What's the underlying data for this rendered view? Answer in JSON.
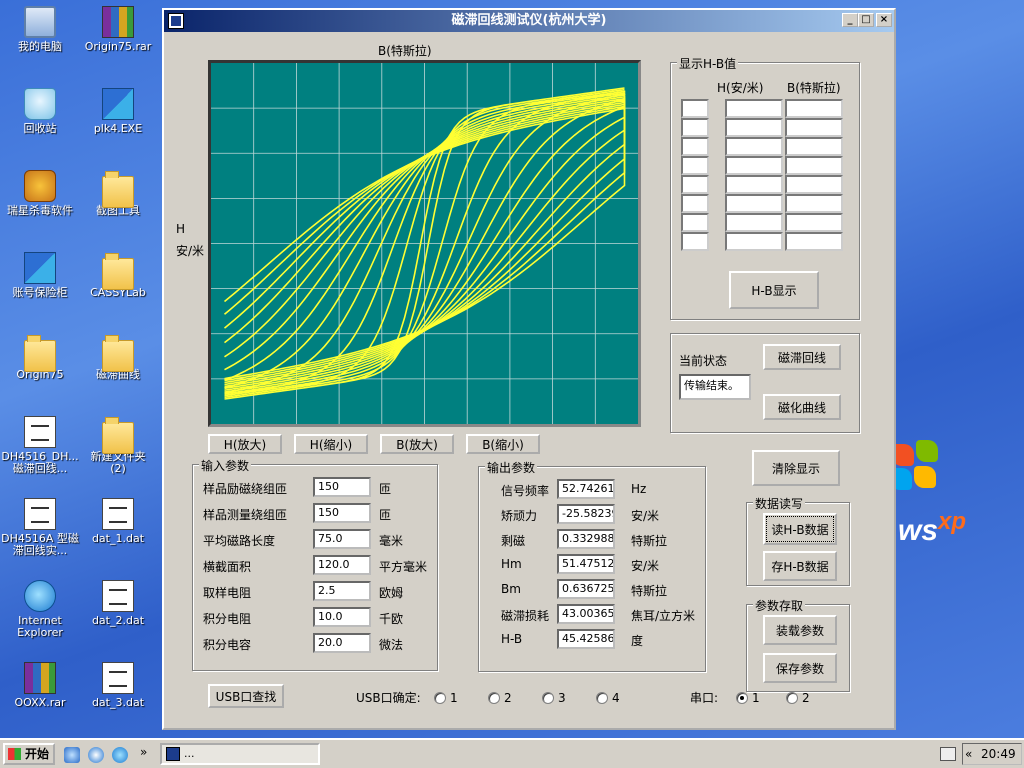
{
  "desktop": {
    "icons": [
      {
        "label": "我的电脑",
        "type": "computer"
      },
      {
        "label": "Origin75.rar",
        "type": "rar"
      },
      {
        "label": "回收站",
        "type": "recycle"
      },
      {
        "label": "plk4.EXE",
        "type": "exe"
      },
      {
        "label": "瑞星杀毒软件",
        "type": "lion"
      },
      {
        "label": "截图工具",
        "type": "folder"
      },
      {
        "label": "账号保险柜",
        "type": "exe"
      },
      {
        "label": "CASSYLab",
        "type": "folder"
      },
      {
        "label": "Origin75",
        "type": "folder"
      },
      {
        "label": "磁滞曲线",
        "type": "folder"
      },
      {
        "label": "DH4516_DH...\n磁滞回线...",
        "type": "doc"
      },
      {
        "label": "新建文件夹\n(2)",
        "type": "folder"
      },
      {
        "label": "DH4516A 型磁\n滞回线实...",
        "type": "doc"
      },
      {
        "label": "dat_1.dat",
        "type": "doc"
      },
      {
        "label": "Internet\nExplorer",
        "type": "ie"
      },
      {
        "label": "dat_2.dat",
        "type": "doc"
      },
      {
        "label": "OOXX.rar",
        "type": "rar"
      },
      {
        "label": "dat_3.dat",
        "type": "doc"
      }
    ]
  },
  "window": {
    "title": "磁滞回线测试仪(杭州大学)",
    "minimize": "_",
    "maximize": "□",
    "close": "×"
  },
  "plot": {
    "x_label": "B(特斯拉)",
    "y_label_1": "H",
    "y_label_2": "安/米",
    "line_color": "#ffff33",
    "bg_color": "#008080",
    "grid_color": "#c0d8d8",
    "zoom_buttons": [
      "H(放大)",
      "H(缩小)",
      "B(放大)",
      "B(缩小)"
    ]
  },
  "hb_panel": {
    "title": "显示H-B值",
    "col_h": "H(安/米)",
    "col_b": "B(特斯拉)",
    "button": "H-B显示"
  },
  "status_panel": {
    "label": "当前状态",
    "value": "传输结束。",
    "btn_hysteresis": "磁滞回线",
    "btn_magnetization": "磁化曲线"
  },
  "input_params": {
    "title": "输入参数",
    "rows": [
      {
        "label": "样品励磁绕组匝",
        "value": "150",
        "unit": "匝"
      },
      {
        "label": "样品测量绕组匝",
        "value": "150",
        "unit": "匝"
      },
      {
        "label": "平均磁路长度",
        "value": "75.0",
        "unit": "毫米"
      },
      {
        "label": "横截面积",
        "value": "120.0",
        "unit": "平方毫米"
      },
      {
        "label": "取样电阻",
        "value": "2.5",
        "unit": "欧姆"
      },
      {
        "label": "积分电阻",
        "value": "10.0",
        "unit": "千欧"
      },
      {
        "label": "积分电容",
        "value": "20.0",
        "unit": "微法"
      }
    ]
  },
  "output_params": {
    "title": "输出参数",
    "rows": [
      {
        "label": "信号频率",
        "value": "52.742616",
        "unit": "Hz"
      },
      {
        "label": "矫顽力",
        "value": "-25.58239",
        "unit": "安/米"
      },
      {
        "label": "剩磁",
        "value": "0.332988",
        "unit": "特斯拉"
      },
      {
        "label": "Hm",
        "value": "51.475128",
        "unit": "安/米"
      },
      {
        "label": "Bm",
        "value": "0.636725",
        "unit": "特斯拉"
      },
      {
        "label": "磁滞损耗",
        "value": "43.003651",
        "unit": "焦耳/立方米"
      },
      {
        "label": "H-B",
        "value": "45.425868",
        "unit": "度"
      }
    ]
  },
  "right_buttons": {
    "clear": "清除显示",
    "data_group": "数据读写",
    "read_hb": "读H-B数据",
    "save_hb": "存H-B数据",
    "param_group": "参数存取",
    "load_params": "装载参数",
    "save_params": "保存参数"
  },
  "usb": {
    "find_button": "USB口查找",
    "confirm_label": "USB口确定:",
    "options": [
      "1",
      "2",
      "3",
      "4"
    ]
  },
  "serial": {
    "label": "串口:",
    "options": [
      "1",
      "2"
    ],
    "selected": "1"
  },
  "taskbar": {
    "start": "开始",
    "task_label": "...",
    "quicklaunch_more": "»",
    "tray_arrow": "«",
    "time": "20:49"
  }
}
